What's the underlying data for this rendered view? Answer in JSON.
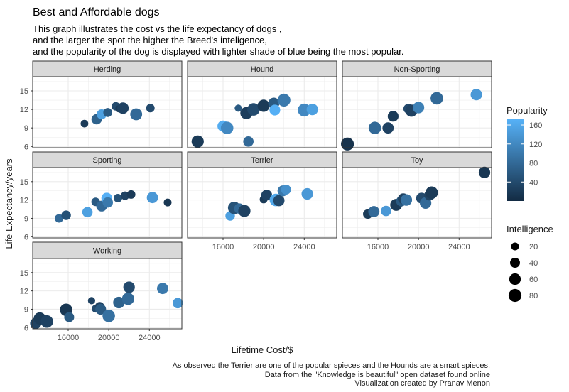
{
  "chart_data": {
    "type": "scatter",
    "title": "Best and Affordable dogs",
    "subtitle": [
      "This graph illustrates the cost vs the life expectancy of dogs ,",
      "and the larger the spot the higher the Breed's inteligence,",
      "and the popularity of the dog is displayed with lighter shade of blue being the most popular."
    ],
    "caption": [
      "As observed the Terrier are one of the popular spieces and the Hounds are a smart spieces.",
      "Data from the \"Knowledge is beautiful\" open dataset found online",
      "Visualization created by Pranav Menon"
    ],
    "xlabel": "Lifetime Cost/$",
    "ylabel": "Life Expectancy/years",
    "xlim": [
      12500,
      27200
    ],
    "ylim": [
      5.8,
      17.3
    ],
    "x_ticks": [
      16000,
      20000,
      24000
    ],
    "y_ticks": [
      6,
      9,
      12,
      15
    ],
    "grid": true,
    "color_scale": {
      "low": "#132b43",
      "high": "#56b1f7",
      "min": 0,
      "max": 172
    },
    "legend_color": {
      "title": "Popularity",
      "ticks": [
        40,
        80,
        120,
        160
      ]
    },
    "legend_size": {
      "title": "Intelligence",
      "values": [
        20,
        40,
        60,
        80
      ]
    },
    "legend_position": "right",
    "panels": [
      {
        "name": "Herding",
        "points": [
          {
            "x": 17600,
            "y": 9.7,
            "intelligence": 18,
            "popularity": 20
          },
          {
            "x": 18800,
            "y": 10.4,
            "intelligence": 45,
            "popularity": 70
          },
          {
            "x": 19300,
            "y": 11.2,
            "intelligence": 40,
            "popularity": 150
          },
          {
            "x": 19900,
            "y": 11.5,
            "intelligence": 30,
            "popularity": 60
          },
          {
            "x": 20700,
            "y": 12.5,
            "intelligence": 25,
            "popularity": 40
          },
          {
            "x": 21000,
            "y": 12.1,
            "intelligence": 15,
            "popularity": 20
          },
          {
            "x": 21400,
            "y": 12.2,
            "intelligence": 60,
            "popularity": 30
          },
          {
            "x": 22700,
            "y": 11.2,
            "intelligence": 65,
            "popularity": 80
          },
          {
            "x": 24100,
            "y": 12.2,
            "intelligence": 25,
            "popularity": 40
          }
        ]
      },
      {
        "name": "Hound",
        "points": [
          {
            "x": 13500,
            "y": 6.8,
            "intelligence": 70,
            "popularity": 20
          },
          {
            "x": 16000,
            "y": 9.3,
            "intelligence": 55,
            "popularity": 165
          },
          {
            "x": 16400,
            "y": 9.0,
            "intelligence": 75,
            "popularity": 120
          },
          {
            "x": 17500,
            "y": 12.2,
            "intelligence": 15,
            "popularity": 60
          },
          {
            "x": 18300,
            "y": 11.4,
            "intelligence": 70,
            "popularity": 25
          },
          {
            "x": 18500,
            "y": 6.8,
            "intelligence": 45,
            "popularity": 80
          },
          {
            "x": 19000,
            "y": 12.0,
            "intelligence": 75,
            "popularity": 40
          },
          {
            "x": 20000,
            "y": 12.6,
            "intelligence": 70,
            "popularity": 20
          },
          {
            "x": 21000,
            "y": 13.0,
            "intelligence": 55,
            "popularity": 60
          },
          {
            "x": 21100,
            "y": 11.9,
            "intelligence": 50,
            "popularity": 170
          },
          {
            "x": 22000,
            "y": 13.5,
            "intelligence": 80,
            "popularity": 100
          },
          {
            "x": 24000,
            "y": 11.9,
            "intelligence": 80,
            "popularity": 120
          },
          {
            "x": 24800,
            "y": 12.0,
            "intelligence": 60,
            "popularity": 150
          }
        ]
      },
      {
        "name": "Non-Sporting",
        "points": [
          {
            "x": 13000,
            "y": 6.4,
            "intelligence": 80,
            "popularity": 10
          },
          {
            "x": 15700,
            "y": 9.0,
            "intelligence": 75,
            "popularity": 80
          },
          {
            "x": 17000,
            "y": 9.0,
            "intelligence": 55,
            "popularity": 30
          },
          {
            "x": 17500,
            "y": 10.9,
            "intelligence": 50,
            "popularity": 20
          },
          {
            "x": 19000,
            "y": 12.1,
            "intelligence": 40,
            "popularity": 40
          },
          {
            "x": 19300,
            "y": 11.8,
            "intelligence": 70,
            "popularity": 30
          },
          {
            "x": 20000,
            "y": 12.3,
            "intelligence": 60,
            "popularity": 110
          },
          {
            "x": 21800,
            "y": 13.8,
            "intelligence": 75,
            "popularity": 80
          },
          {
            "x": 25700,
            "y": 14.4,
            "intelligence": 60,
            "popularity": 140
          }
        ]
      },
      {
        "name": "Sporting",
        "points": [
          {
            "x": 15100,
            "y": 9.0,
            "intelligence": 25,
            "popularity": 80
          },
          {
            "x": 15800,
            "y": 9.5,
            "intelligence": 35,
            "popularity": 50
          },
          {
            "x": 17900,
            "y": 10.0,
            "intelligence": 45,
            "popularity": 150
          },
          {
            "x": 18700,
            "y": 11.7,
            "intelligence": 25,
            "popularity": 60
          },
          {
            "x": 19300,
            "y": 11.0,
            "intelligence": 50,
            "popularity": 80
          },
          {
            "x": 19800,
            "y": 12.3,
            "intelligence": 50,
            "popularity": 170
          },
          {
            "x": 19900,
            "y": 11.6,
            "intelligence": 45,
            "popularity": 100
          },
          {
            "x": 20900,
            "y": 12.3,
            "intelligence": 25,
            "popularity": 50
          },
          {
            "x": 21600,
            "y": 12.7,
            "intelligence": 25,
            "popularity": 30
          },
          {
            "x": 22200,
            "y": 12.9,
            "intelligence": 25,
            "popularity": 20
          },
          {
            "x": 24300,
            "y": 12.4,
            "intelligence": 55,
            "popularity": 140
          },
          {
            "x": 25800,
            "y": 11.6,
            "intelligence": 20,
            "popularity": 15
          }
        ]
      },
      {
        "name": "Terrier",
        "points": [
          {
            "x": 16700,
            "y": 9.4,
            "intelligence": 35,
            "popularity": 150
          },
          {
            "x": 17100,
            "y": 10.7,
            "intelligence": 75,
            "popularity": 50
          },
          {
            "x": 17600,
            "y": 10.6,
            "intelligence": 45,
            "popularity": 80
          },
          {
            "x": 18100,
            "y": 10.2,
            "intelligence": 70,
            "popularity": 30
          },
          {
            "x": 20000,
            "y": 12.1,
            "intelligence": 20,
            "popularity": 20
          },
          {
            "x": 20300,
            "y": 12.8,
            "intelligence": 50,
            "popularity": 30
          },
          {
            "x": 21200,
            "y": 12.0,
            "intelligence": 75,
            "popularity": 160
          },
          {
            "x": 21500,
            "y": 11.9,
            "intelligence": 55,
            "popularity": 40
          },
          {
            "x": 21900,
            "y": 13.5,
            "intelligence": 50,
            "popularity": 100
          },
          {
            "x": 22200,
            "y": 13.7,
            "intelligence": 40,
            "popularity": 130
          },
          {
            "x": 24300,
            "y": 13.0,
            "intelligence": 60,
            "popularity": 140
          }
        ]
      },
      {
        "name": "Toy",
        "points": [
          {
            "x": 15000,
            "y": 9.7,
            "intelligence": 35,
            "popularity": 20
          },
          {
            "x": 15600,
            "y": 10.1,
            "intelligence": 55,
            "popularity": 80
          },
          {
            "x": 16800,
            "y": 10.2,
            "intelligence": 45,
            "popularity": 140
          },
          {
            "x": 17800,
            "y": 11.2,
            "intelligence": 65,
            "popularity": 20
          },
          {
            "x": 18300,
            "y": 11.8,
            "intelligence": 45,
            "popularity": 60
          },
          {
            "x": 18500,
            "y": 12.2,
            "intelligence": 50,
            "popularity": 30
          },
          {
            "x": 18800,
            "y": 12.0,
            "intelligence": 60,
            "popularity": 90
          },
          {
            "x": 20300,
            "y": 12.3,
            "intelligence": 50,
            "popularity": 40
          },
          {
            "x": 20700,
            "y": 11.5,
            "intelligence": 60,
            "popularity": 80
          },
          {
            "x": 21100,
            "y": 12.8,
            "intelligence": 50,
            "popularity": 30
          },
          {
            "x": 21300,
            "y": 13.2,
            "intelligence": 75,
            "popularity": 20
          },
          {
            "x": 26500,
            "y": 16.5,
            "intelligence": 60,
            "popularity": 15
          }
        ]
      },
      {
        "name": "Working",
        "points": [
          {
            "x": 12800,
            "y": 6.7,
            "intelligence": 55,
            "popularity": 30
          },
          {
            "x": 13200,
            "y": 7.5,
            "intelligence": 70,
            "popularity": 20
          },
          {
            "x": 13900,
            "y": 7.0,
            "intelligence": 75,
            "popularity": 30
          },
          {
            "x": 15800,
            "y": 8.9,
            "intelligence": 75,
            "popularity": 15
          },
          {
            "x": 16100,
            "y": 7.7,
            "intelligence": 40,
            "popularity": 60
          },
          {
            "x": 18300,
            "y": 10.4,
            "intelligence": 15,
            "popularity": 30
          },
          {
            "x": 18700,
            "y": 9.1,
            "intelligence": 20,
            "popularity": 40
          },
          {
            "x": 19100,
            "y": 9.4,
            "intelligence": 35,
            "popularity": 30
          },
          {
            "x": 19200,
            "y": 9.0,
            "intelligence": 50,
            "popularity": 60
          },
          {
            "x": 20000,
            "y": 7.9,
            "intelligence": 75,
            "popularity": 90
          },
          {
            "x": 21000,
            "y": 10.1,
            "intelligence": 60,
            "popularity": 70
          },
          {
            "x": 21900,
            "y": 10.7,
            "intelligence": 70,
            "popularity": 80
          },
          {
            "x": 22000,
            "y": 12.6,
            "intelligence": 60,
            "popularity": 40
          },
          {
            "x": 25300,
            "y": 12.4,
            "intelligence": 55,
            "popularity": 100
          },
          {
            "x": 26800,
            "y": 10.0,
            "intelligence": 45,
            "popularity": 140
          }
        ]
      }
    ]
  }
}
